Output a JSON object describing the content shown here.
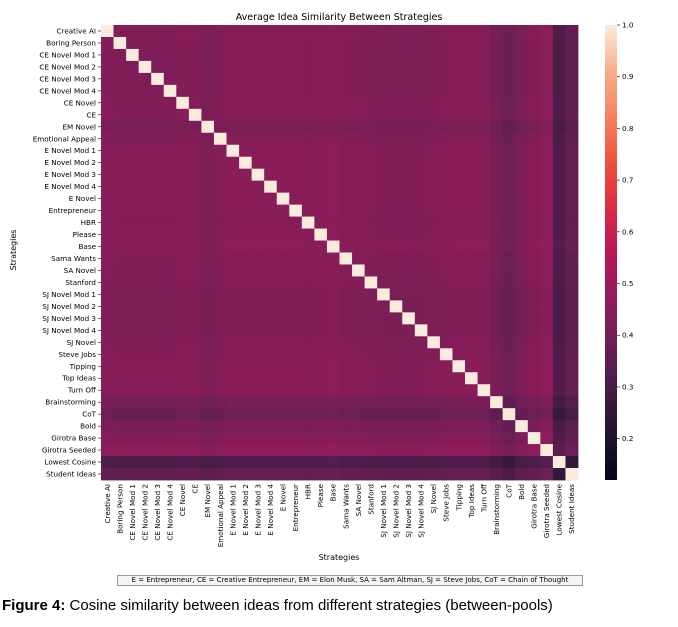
{
  "chart_data": {
    "type": "heatmap",
    "title": "Average Idea Similarity Between Strategies",
    "xlabel": "Strategies",
    "ylabel": "Strategies",
    "labels": [
      "Creative AI",
      "Boring Person",
      "CE Novel Mod 1",
      "CE Novel Mod 2",
      "CE Novel Mod 3",
      "CE Novel Mod 4",
      "CE Novel",
      "CE",
      "EM Novel",
      "Emotional Appeal",
      "E Novel Mod 1",
      "E Novel Mod 2",
      "E Novel Mod 3",
      "E Novel Mod 4",
      "E Novel",
      "Entrepreneur",
      "HBR",
      "Please",
      "Base",
      "Sama Wants",
      "SA Novel",
      "Stanford",
      "SJ Novel Mod 1",
      "SJ Novel Mod 2",
      "SJ Novel Mod 3",
      "SJ Novel Mod 4",
      "SJ Novel",
      "Steve Jobs",
      "Tipping",
      "Top Ideas",
      "Turn Off",
      "Brainstorming",
      "CoT",
      "Bold",
      "Girotra Base",
      "Girotra Seeded",
      "Lowest Cosine",
      "Student Ideas"
    ],
    "colorbar": {
      "min": 0.12,
      "max": 1.0,
      "ticks": [
        0.2,
        0.3,
        0.4,
        0.5,
        0.6,
        0.7,
        0.8,
        0.9,
        1.0
      ]
    },
    "row_levels": [
      0.44,
      0.43,
      0.43,
      0.43,
      0.43,
      0.43,
      0.44,
      0.44,
      0.4,
      0.43,
      0.45,
      0.45,
      0.45,
      0.45,
      0.45,
      0.45,
      0.44,
      0.45,
      0.46,
      0.44,
      0.44,
      0.43,
      0.42,
      0.42,
      0.42,
      0.42,
      0.43,
      0.44,
      0.45,
      0.45,
      0.45,
      0.38,
      0.33,
      0.4,
      0.44,
      0.48,
      0.2,
      0.29
    ],
    "notes": "Diagonal values are 1.0; off-diagonal cell value approximated as the mean of the two row levels, with Lowest Cosine row/column near 0.15-0.25 and Student Ideas near 0.25-0.33."
  },
  "legend_text": "E = Entrepreneur, CE = Creative Entrepreneur, EM = Elon Musk, SA = Sam Altman, SJ = Steve Jobs, CoT = Chain of Thought",
  "caption": {
    "label": "Figure 4:",
    "text": " Cosine similarity between ideas from different strategies (between-pools)"
  }
}
